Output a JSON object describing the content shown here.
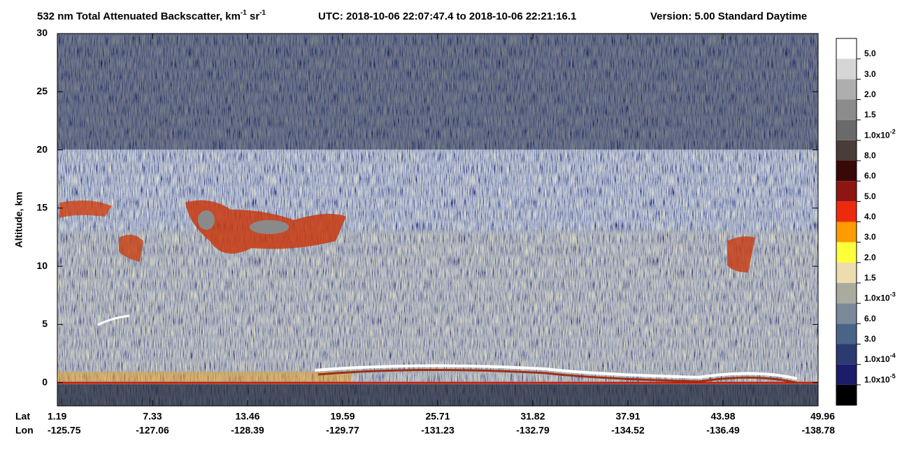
{
  "chart_data": {
    "type": "heatmap",
    "title_parts": [
      "532 nm Total Attenuated Backscatter, km",
      "-1",
      " sr",
      "-1"
    ],
    "utc": "UTC:  2018-10-06 22:07:47.4  to  2018-10-06 22:21:16.1",
    "version": "Version: 5.00  Standard  Daytime",
    "ylabel": "Altitude, km",
    "ylim": [
      -2,
      30
    ],
    "yticks": [
      0,
      5,
      10,
      15,
      20,
      25,
      30
    ],
    "x_row_labels": [
      "Lat",
      "Lon"
    ],
    "lat": [
      1.19,
      7.33,
      13.46,
      19.59,
      25.71,
      31.82,
      37.91,
      43.98,
      49.96
    ],
    "lon": [
      -125.75,
      -127.06,
      -128.39,
      -129.77,
      -131.23,
      -132.79,
      -134.52,
      -136.49,
      -138.78
    ],
    "colorbar": [
      {
        "color": "#ffffff",
        "label": "5.0"
      },
      {
        "color": "#d6d6d6",
        "label": "3.0"
      },
      {
        "color": "#aeaeae",
        "label": "2.0"
      },
      {
        "color": "#8c8c8c",
        "label": "1.5"
      },
      {
        "color": "#6a6a6a",
        "label": "1.0x10",
        "sup": "-2"
      },
      {
        "color": "#4a3c38",
        "label": "8.0"
      },
      {
        "color": "#3a0808",
        "label": "6.0"
      },
      {
        "color": "#8e1612",
        "label": "5.0"
      },
      {
        "color": "#ee2a0c",
        "label": "4.0"
      },
      {
        "color": "#ff9a00",
        "label": "3.0"
      },
      {
        "color": "#ffff3a",
        "label": "2.0"
      },
      {
        "color": "#ecdcae",
        "label": "1.5"
      },
      {
        "color": "#a9ab9f",
        "label": "1.0x10",
        "sup": "-3"
      },
      {
        "color": "#7a8a9a",
        "label": "6.0"
      },
      {
        "color": "#4a6488",
        "label": "3.0"
      },
      {
        "color": "#2c3a72",
        "label": "1.0x10",
        "sup": "-4"
      },
      {
        "color": "#1c1c6a",
        "label": "1.0x10",
        "sup": "-5"
      },
      {
        "color": "#000000"
      }
    ]
  }
}
